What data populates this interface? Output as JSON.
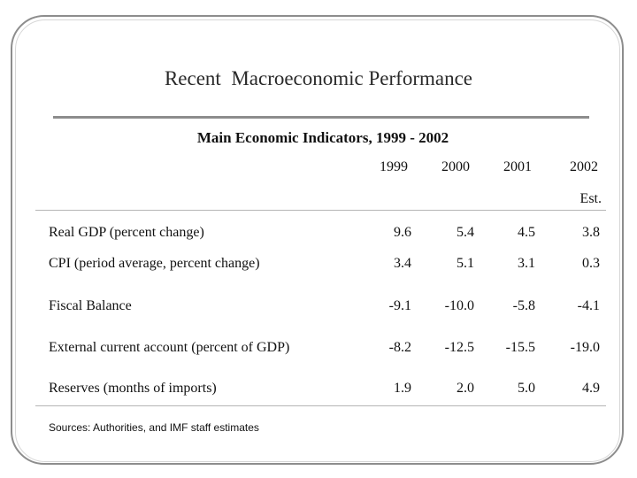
{
  "slide": {
    "title": "Recent  Macroeconomic Performance",
    "table_title": "Main Economic Indicators, 1999 - 2002",
    "source": "Sources: Authorities, and IMF staff estimates"
  },
  "columns": [
    "1999",
    "2000",
    "2001",
    "2002"
  ],
  "est_note": "Est.",
  "rows": [
    {
      "label": "Real GDP (percent change)",
      "values": [
        "9.6",
        "5.4",
        "4.5",
        "3.8"
      ]
    },
    {
      "label": "CPI (period average, percent change)",
      "values": [
        "3.4",
        "5.1",
        "3.1",
        "0.3"
      ]
    },
    {
      "label": "Fiscal Balance",
      "values": [
        "-9.1",
        "-10.0",
        "-5.8",
        "-4.1"
      ]
    },
    {
      "label": "External current account (percent of GDP)",
      "values": [
        "-8.2",
        "-12.5",
        "-15.5",
        "-19.0"
      ]
    },
    {
      "label": "Reserves (months of imports)",
      "values": [
        "1.9",
        "2.0",
        "5.0",
        "4.9"
      ]
    }
  ]
}
